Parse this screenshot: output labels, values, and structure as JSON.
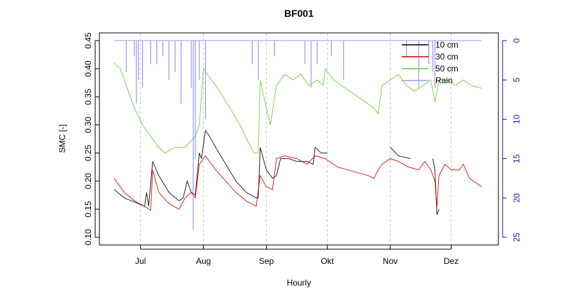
{
  "chart_data": {
    "type": "line",
    "title": "BF001",
    "xlabel": "Hourly",
    "ylabel": "SMC [-]",
    "ylim": [
      0.1,
      0.45
    ],
    "yticks": [
      "0.10",
      "0.15",
      "0.20",
      "0.25",
      "0.30",
      "0.35",
      "0.40",
      "0.45"
    ],
    "y2lim": [
      0,
      25
    ],
    "y2ticks": [
      "0",
      "5",
      "10",
      "15",
      "20",
      "25"
    ],
    "y2_inverted": true,
    "x_unit": "days since 18 Jun",
    "xlim": [
      0,
      181
    ],
    "xticks": [
      {
        "day": 13,
        "label": "Jul"
      },
      {
        "day": 44,
        "label": "Aug"
      },
      {
        "day": 75,
        "label": "Sep"
      },
      {
        "day": 105,
        "label": "Okt"
      },
      {
        "day": 136,
        "label": "Nov"
      },
      {
        "day": 166,
        "label": "Dez"
      }
    ],
    "grid": "vertical dashed at month ticks",
    "legend_position": "top-right",
    "series": [
      {
        "name": "10 cm",
        "color": "#000000",
        "axis": "left",
        "points": [
          [
            0,
            0.185
          ],
          [
            5,
            0.17
          ],
          [
            10,
            0.163
          ],
          [
            15,
            0.155
          ],
          [
            16,
            0.18
          ],
          [
            17,
            0.155
          ],
          [
            19,
            0.235
          ],
          [
            22,
            0.21
          ],
          [
            27,
            0.18
          ],
          [
            32,
            0.165
          ],
          [
            34,
            0.17
          ],
          [
            36,
            0.2
          ],
          [
            38,
            0.18
          ],
          [
            40,
            0.175
          ],
          [
            42,
            0.25
          ],
          [
            43,
            0.24
          ],
          [
            45,
            0.29
          ],
          [
            47,
            0.28
          ],
          [
            50,
            0.26
          ],
          [
            55,
            0.23
          ],
          [
            60,
            0.2
          ],
          [
            65,
            0.18
          ],
          [
            70,
            0.17
          ],
          [
            71,
            0.17
          ],
          [
            72,
            0.26
          ],
          [
            75,
            0.22
          ],
          [
            78,
            0.205
          ],
          [
            80,
            0.21
          ],
          [
            82,
            0.24
          ],
          [
            86,
            0.24
          ],
          [
            90,
            0.235
          ],
          [
            95,
            0.235
          ],
          [
            98,
            0.23
          ],
          [
            99,
            0.26
          ],
          [
            102,
            0.25
          ],
          [
            105,
            0.25
          ],
          null,
          [
            136,
            0.26
          ],
          [
            140,
            0.245
          ],
          [
            146,
            0.24
          ],
          null,
          [
            157,
            0.24
          ],
          [
            158,
            0.22
          ],
          [
            159,
            0.14
          ],
          [
            160,
            0.15
          ]
        ]
      },
      {
        "name": "30 cm",
        "color": "#cc0000",
        "axis": "left",
        "points": [
          [
            0,
            0.205
          ],
          [
            5,
            0.18
          ],
          [
            10,
            0.165
          ],
          [
            15,
            0.155
          ],
          [
            18,
            0.148
          ],
          [
            19,
            0.22
          ],
          [
            22,
            0.18
          ],
          [
            27,
            0.16
          ],
          [
            32,
            0.15
          ],
          [
            35,
            0.17
          ],
          [
            38,
            0.18
          ],
          [
            40,
            0.17
          ],
          [
            42,
            0.23
          ],
          [
            45,
            0.245
          ],
          [
            50,
            0.22
          ],
          [
            55,
            0.2
          ],
          [
            60,
            0.18
          ],
          [
            65,
            0.165
          ],
          [
            70,
            0.155
          ],
          [
            72,
            0.21
          ],
          [
            75,
            0.19
          ],
          [
            78,
            0.185
          ],
          [
            80,
            0.24
          ],
          [
            84,
            0.245
          ],
          [
            90,
            0.24
          ],
          [
            95,
            0.23
          ],
          [
            99,
            0.245
          ],
          [
            104,
            0.24
          ],
          [
            110,
            0.225
          ],
          [
            115,
            0.22
          ],
          [
            120,
            0.215
          ],
          [
            125,
            0.21
          ],
          [
            128,
            0.205
          ],
          [
            130,
            0.22
          ],
          [
            132,
            0.23
          ],
          [
            136,
            0.24
          ],
          [
            140,
            0.235
          ],
          [
            145,
            0.225
          ],
          [
            150,
            0.22
          ],
          [
            153,
            0.235
          ],
          [
            156,
            0.22
          ],
          [
            158,
            0.2
          ],
          [
            159,
            0.155
          ],
          [
            160,
            0.21
          ],
          [
            163,
            0.23
          ],
          [
            166,
            0.22
          ],
          [
            170,
            0.22
          ],
          [
            172,
            0.23
          ],
          [
            175,
            0.205
          ],
          [
            181,
            0.19
          ]
        ]
      },
      {
        "name": "50 cm",
        "color": "#66cc33",
        "axis": "left",
        "points": [
          [
            0,
            0.41
          ],
          [
            3,
            0.4
          ],
          [
            6,
            0.37
          ],
          [
            10,
            0.33
          ],
          [
            14,
            0.3
          ],
          [
            18,
            0.28
          ],
          [
            22,
            0.26
          ],
          [
            25,
            0.25
          ],
          [
            30,
            0.26
          ],
          [
            35,
            0.26
          ],
          [
            40,
            0.28
          ],
          [
            42,
            0.3
          ],
          [
            44,
            0.4
          ],
          [
            46,
            0.39
          ],
          [
            48,
            0.38
          ],
          [
            52,
            0.36
          ],
          [
            57,
            0.33
          ],
          [
            62,
            0.3
          ],
          [
            66,
            0.27
          ],
          [
            69,
            0.25
          ],
          [
            71,
            0.25
          ],
          [
            72,
            0.38
          ],
          [
            75,
            0.33
          ],
          [
            77,
            0.3
          ],
          [
            80,
            0.37
          ],
          [
            84,
            0.39
          ],
          [
            88,
            0.38
          ],
          [
            92,
            0.39
          ],
          [
            96,
            0.37
          ],
          [
            100,
            0.38
          ],
          [
            103,
            0.37
          ],
          [
            104,
            0.4
          ],
          [
            108,
            0.38
          ],
          [
            112,
            0.37
          ],
          [
            116,
            0.36
          ],
          [
            120,
            0.35
          ],
          [
            124,
            0.34
          ],
          [
            128,
            0.33
          ],
          [
            130,
            0.32
          ],
          [
            132,
            0.37
          ],
          [
            136,
            0.38
          ],
          [
            140,
            0.39
          ],
          [
            144,
            0.37
          ],
          [
            148,
            0.36
          ],
          [
            152,
            0.37
          ],
          [
            156,
            0.38
          ],
          [
            158,
            0.34
          ],
          [
            160,
            0.38
          ],
          [
            164,
            0.38
          ],
          [
            168,
            0.37
          ],
          [
            172,
            0.38
          ],
          [
            176,
            0.37
          ],
          [
            181,
            0.365
          ]
        ]
      },
      {
        "name": "Rain",
        "color": "#9999ee",
        "axis": "right",
        "kind": "spikes",
        "points": [
          [
            6,
            4
          ],
          [
            10,
            2
          ],
          [
            11,
            8
          ],
          [
            12,
            5
          ],
          [
            14,
            6
          ],
          [
            18,
            3
          ],
          [
            21,
            3
          ],
          [
            24,
            2
          ],
          [
            27,
            5
          ],
          [
            30,
            4
          ],
          [
            33,
            8
          ],
          [
            38,
            6
          ],
          [
            39,
            24
          ],
          [
            40,
            15
          ],
          [
            42,
            5
          ],
          [
            45,
            10
          ],
          [
            68,
            3
          ],
          [
            71,
            5
          ],
          [
            79,
            2
          ],
          [
            94,
            3
          ],
          [
            97,
            6
          ],
          [
            100,
            3
          ],
          [
            107,
            2
          ],
          [
            113,
            5
          ],
          [
            144,
            2
          ],
          [
            150,
            6
          ],
          [
            155,
            3
          ],
          [
            157,
            4
          ],
          [
            158,
            6
          ]
        ]
      }
    ]
  }
}
